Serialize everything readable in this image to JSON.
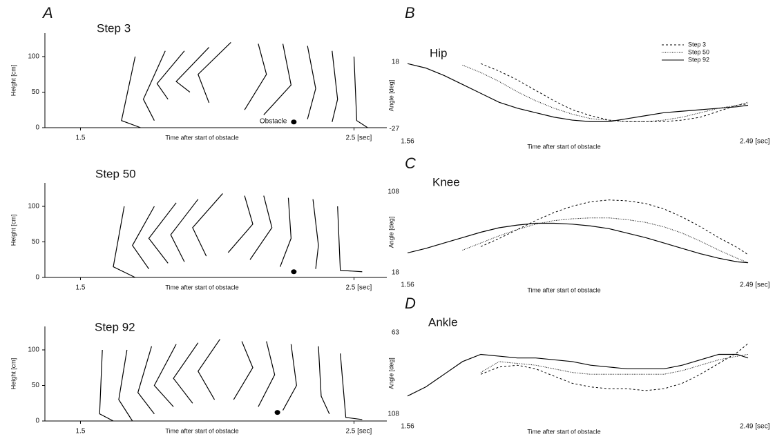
{
  "chart_data": [
    {
      "type": "sticks",
      "panel": "A",
      "title": "Step 3",
      "ylabel": "Height [cm]",
      "xlabel": "Time after start of obstacle",
      "xlim": [
        1.37,
        2.62
      ],
      "ylim": [
        0,
        133
      ],
      "xticks": [
        1.5,
        {
          "value": 2.5,
          "label": "2.5 [sec]"
        }
      ],
      "yticks": [
        0,
        50,
        100
      ],
      "axis_lines": true,
      "color": "#000",
      "obstacle": {
        "x": 2.28,
        "y": 8
      },
      "obstacle_label": "Obstacle",
      "series": [
        {
          "x": [
            1.7,
            1.65,
            1.72
          ],
          "y": [
            100,
            10,
            0
          ]
        },
        {
          "x": [
            1.81,
            1.73,
            1.77
          ],
          "y": [
            108,
            40,
            10
          ]
        },
        {
          "x": [
            1.88,
            1.78,
            1.82
          ],
          "y": [
            108,
            62,
            40
          ]
        },
        {
          "x": [
            1.97,
            1.85,
            1.9
          ],
          "y": [
            113,
            65,
            50
          ]
        },
        {
          "x": [
            2.05,
            1.93,
            1.97
          ],
          "y": [
            120,
            75,
            35
          ]
        },
        {
          "x": [
            2.15,
            2.18,
            2.1
          ],
          "y": [
            118,
            75,
            25
          ]
        },
        {
          "x": [
            2.24,
            2.27,
            2.17
          ],
          "y": [
            118,
            60,
            18
          ]
        },
        {
          "x": [
            2.33,
            2.36,
            2.33
          ],
          "y": [
            115,
            55,
            12
          ]
        },
        {
          "x": [
            2.42,
            2.44,
            2.42
          ],
          "y": [
            108,
            40,
            8
          ]
        },
        {
          "x": [
            2.5,
            2.51,
            2.55
          ],
          "y": [
            100,
            10,
            0
          ]
        }
      ]
    },
    {
      "type": "sticks",
      "title": "Step 50",
      "ylabel": "Height [cm]",
      "xlabel": "Time after start of obstacle",
      "xlim": [
        1.37,
        2.62
      ],
      "ylim": [
        0,
        133
      ],
      "xticks": [
        1.5,
        {
          "value": 2.5,
          "label": "2.5 [sec]"
        }
      ],
      "yticks": [
        0,
        50,
        100
      ],
      "axis_lines": true,
      "color": "#000",
      "obstacle": {
        "x": 2.28,
        "y": 8
      },
      "series": [
        {
          "x": [
            1.66,
            1.62,
            1.7
          ],
          "y": [
            100,
            15,
            0
          ]
        },
        {
          "x": [
            1.77,
            1.69,
            1.75
          ],
          "y": [
            100,
            45,
            12
          ]
        },
        {
          "x": [
            1.85,
            1.75,
            1.82
          ],
          "y": [
            105,
            55,
            20
          ]
        },
        {
          "x": [
            1.93,
            1.83,
            1.88
          ],
          "y": [
            110,
            60,
            22
          ]
        },
        {
          "x": [
            2.02,
            1.91,
            1.96
          ],
          "y": [
            118,
            70,
            30
          ]
        },
        {
          "x": [
            2.1,
            2.13,
            2.04
          ],
          "y": [
            115,
            75,
            35
          ]
        },
        {
          "x": [
            2.17,
            2.2,
            2.12
          ],
          "y": [
            115,
            70,
            25
          ]
        },
        {
          "x": [
            2.26,
            2.27,
            2.23
          ],
          "y": [
            112,
            55,
            15
          ]
        },
        {
          "x": [
            2.35,
            2.37,
            2.36
          ],
          "y": [
            110,
            45,
            12
          ]
        },
        {
          "x": [
            2.44,
            2.45,
            2.53
          ],
          "y": [
            100,
            10,
            8
          ]
        }
      ]
    },
    {
      "type": "sticks",
      "title": "Step 92",
      "ylabel": "Height [cm]",
      "xlabel": "Time after start of obstacle",
      "xlim": [
        1.37,
        2.62
      ],
      "ylim": [
        0,
        133
      ],
      "xticks": [
        1.5,
        {
          "value": 2.5,
          "label": "2.5 [sec]"
        }
      ],
      "yticks": [
        0,
        50,
        100
      ],
      "axis_lines": true,
      "color": "#000",
      "obstacle": {
        "x": 2.22,
        "y": 12
      },
      "series": [
        {
          "x": [
            1.58,
            1.57,
            1.62
          ],
          "y": [
            100,
            10,
            0
          ]
        },
        {
          "x": [
            1.67,
            1.64,
            1.69
          ],
          "y": [
            100,
            30,
            0
          ]
        },
        {
          "x": [
            1.76,
            1.71,
            1.77
          ],
          "y": [
            105,
            40,
            10
          ]
        },
        {
          "x": [
            1.85,
            1.77,
            1.84
          ],
          "y": [
            108,
            50,
            20
          ]
        },
        {
          "x": [
            1.93,
            1.84,
            1.91
          ],
          "y": [
            110,
            60,
            25
          ]
        },
        {
          "x": [
            2.01,
            1.93,
            1.99
          ],
          "y": [
            115,
            70,
            30
          ]
        },
        {
          "x": [
            2.09,
            2.13,
            2.06
          ],
          "y": [
            112,
            75,
            30
          ]
        },
        {
          "x": [
            2.18,
            2.21,
            2.15
          ],
          "y": [
            112,
            65,
            20
          ]
        },
        {
          "x": [
            2.27,
            2.29,
            2.24
          ],
          "y": [
            108,
            50,
            15
          ]
        },
        {
          "x": [
            2.37,
            2.38,
            2.41
          ],
          "y": [
            105,
            35,
            10
          ]
        },
        {
          "x": [
            2.45,
            2.47,
            2.53
          ],
          "y": [
            95,
            5,
            2
          ]
        }
      ]
    },
    {
      "type": "line",
      "panel": "B",
      "title": "Hip",
      "ylabel": "Angle [deg]",
      "xlabel": "Time after start of obstacle",
      "xlim": [
        1.56,
        2.49
      ],
      "ylim": [
        -27,
        18
      ],
      "xticks": [
        1.56,
        {
          "value": 2.49,
          "label": "2.49 [sec]"
        }
      ],
      "yticks": [
        -27,
        18
      ],
      "axis_lines": false,
      "legend": "upper right",
      "color": "#000",
      "x": [
        1.56,
        1.61,
        1.66,
        1.71,
        1.76,
        1.81,
        1.86,
        1.91,
        1.96,
        2.01,
        2.06,
        2.11,
        2.16,
        2.21,
        2.26,
        2.31,
        2.36,
        2.41,
        2.46,
        2.49
      ],
      "series": [
        {
          "name": "Step 3",
          "dash": "3,3",
          "values": [
            null,
            null,
            null,
            null,
            17,
            12,
            6,
            -1,
            -8,
            -14,
            -18,
            -21,
            -22,
            -22,
            -22,
            -21,
            -19,
            -15,
            -11,
            -10
          ]
        },
        {
          "name": "Step 50",
          "dash": "1,1.5",
          "values": [
            null,
            null,
            null,
            16,
            11,
            5,
            -2,
            -8,
            -13,
            -17,
            -20,
            -21,
            -22,
            -22,
            -21,
            -19,
            -16,
            -13,
            -11,
            -9
          ]
        },
        {
          "name": "Step 92",
          "dash": "none",
          "values": [
            17,
            14,
            9,
            3,
            -3,
            -9,
            -13,
            -16,
            -19,
            -21,
            -22,
            -22,
            -20,
            -18,
            -16,
            -15,
            -14,
            -13,
            -12,
            -11
          ]
        }
      ]
    },
    {
      "type": "line",
      "panel": "C",
      "title": "Knee",
      "ylabel": "Angle [deg]",
      "xlabel": "Time after start of obstacle",
      "xlim": [
        1.56,
        2.49
      ],
      "ylim": [
        18,
        108
      ],
      "xticks": [
        1.56,
        {
          "value": 2.49,
          "label": "2.49 [sec]"
        }
      ],
      "yticks": [
        18,
        108
      ],
      "axis_lines": false,
      "color": "#000",
      "x": [
        1.56,
        1.61,
        1.66,
        1.71,
        1.76,
        1.81,
        1.86,
        1.91,
        1.96,
        2.01,
        2.06,
        2.11,
        2.16,
        2.21,
        2.26,
        2.31,
        2.36,
        2.41,
        2.46,
        2.49
      ],
      "series": [
        {
          "dash": "3,3",
          "values": [
            null,
            null,
            null,
            null,
            47,
            56,
            66,
            76,
            85,
            92,
            97,
            99,
            98,
            95,
            89,
            80,
            69,
            57,
            46,
            38
          ]
        },
        {
          "dash": "1,1.5",
          "values": [
            null,
            null,
            null,
            43,
            51,
            59,
            66,
            72,
            76,
            78,
            79,
            79,
            77,
            74,
            69,
            62,
            53,
            43,
            34,
            29
          ]
        },
        {
          "dash": "none",
          "values": [
            40,
            45,
            51,
            57,
            63,
            68,
            71,
            73,
            73,
            72,
            70,
            67,
            62,
            57,
            51,
            45,
            39,
            34,
            30,
            29
          ]
        }
      ]
    },
    {
      "type": "line",
      "panel": "D",
      "title": "Ankle",
      "ylabel": "Angle [deg]",
      "xlabel": "Time after start of obstacle",
      "xlim": [
        1.56,
        2.49
      ],
      "ylim": [
        108,
        63
      ],
      "xticks": [
        1.56,
        {
          "value": 2.49,
          "label": "2.49 [sec]"
        }
      ],
      "yticks": [
        108,
        63
      ],
      "axis_lines": false,
      "color": "#000",
      "x": [
        1.56,
        1.61,
        1.66,
        1.71,
        1.76,
        1.81,
        1.86,
        1.91,
        1.96,
        2.01,
        2.06,
        2.11,
        2.16,
        2.21,
        2.26,
        2.31,
        2.36,
        2.41,
        2.46,
        2.49
      ],
      "series": [
        {
          "dash": "3,3",
          "values": [
            null,
            null,
            null,
            null,
            86,
            82,
            81,
            83,
            87,
            91,
            93,
            94,
            94,
            95,
            94,
            91,
            86,
            80,
            74,
            69
          ]
        },
        {
          "dash": "1,1.5",
          "values": [
            null,
            null,
            null,
            null,
            85,
            79,
            80,
            81,
            83,
            85,
            86,
            86,
            86,
            86,
            86,
            84,
            81,
            78,
            76,
            75
          ]
        },
        {
          "dash": "none",
          "values": [
            98,
            93,
            86,
            79,
            75,
            76,
            77,
            77,
            78,
            79,
            81,
            82,
            83,
            83,
            83,
            81,
            78,
            75,
            75,
            77
          ]
        }
      ]
    }
  ]
}
